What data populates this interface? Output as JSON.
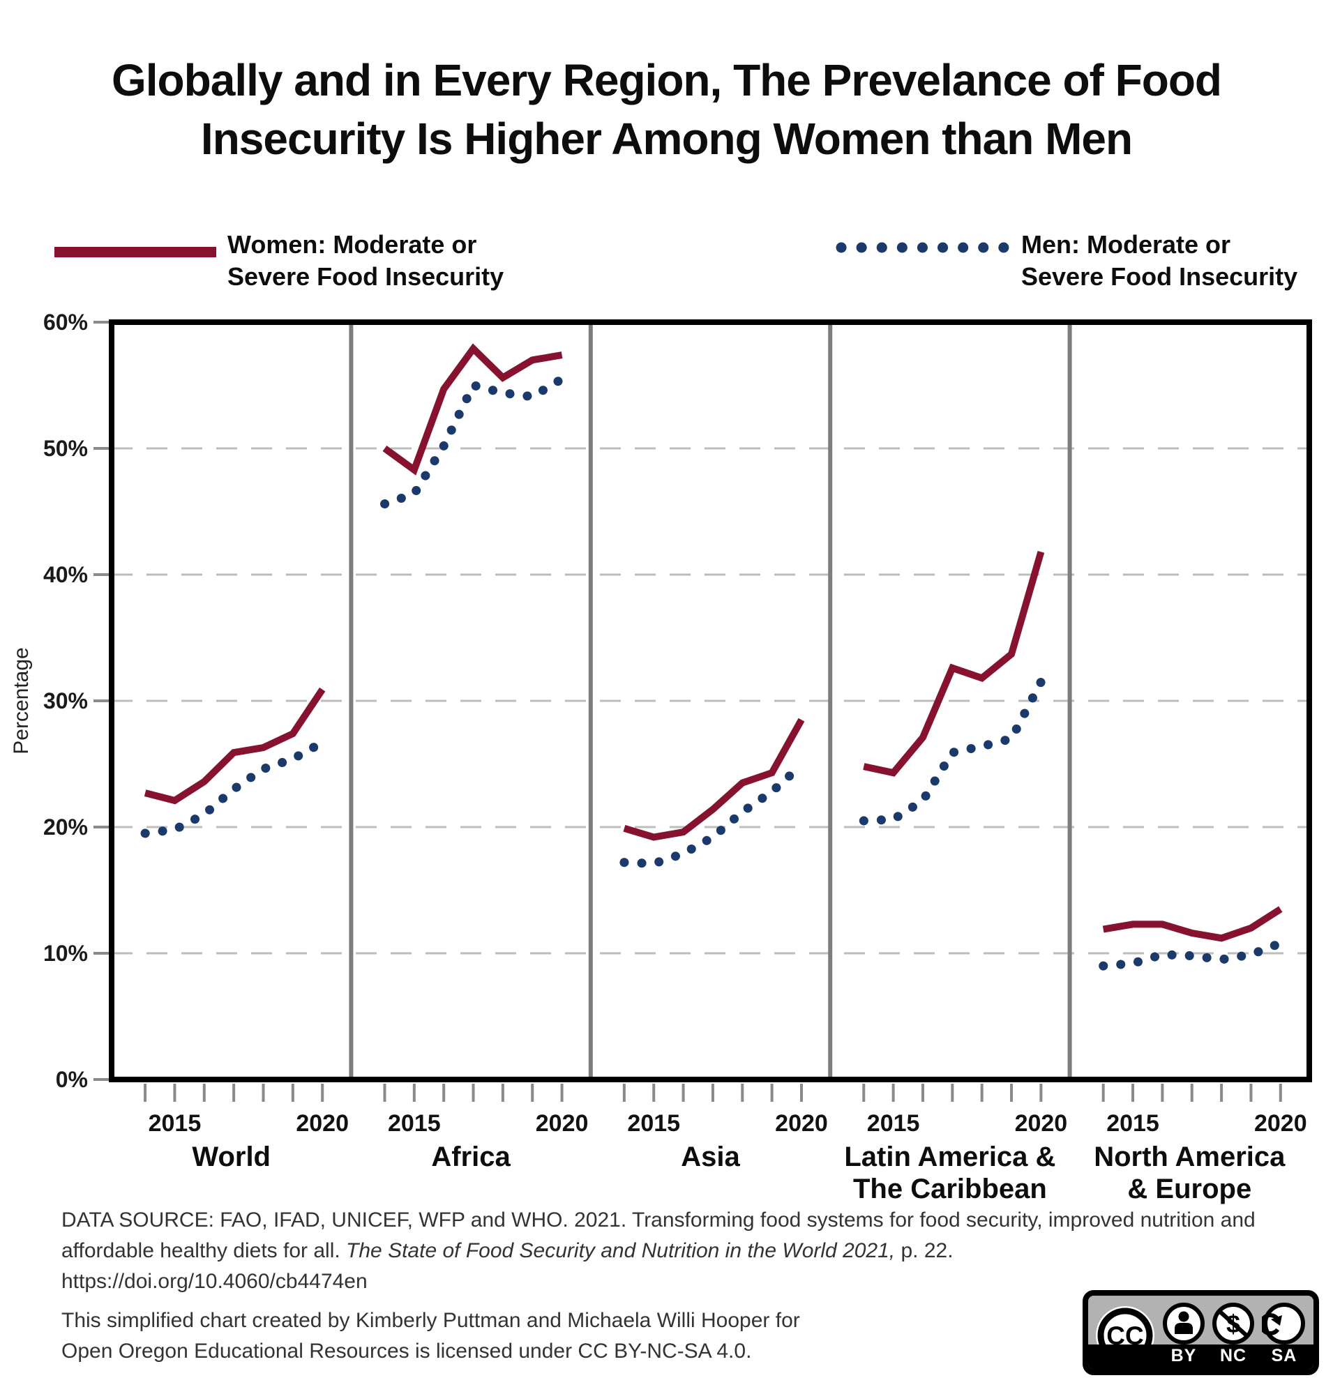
{
  "title": {
    "line1": "Globally and in Every Region, The Prevelance of Food",
    "line2": "Insecurity Is Higher Among Women than Men"
  },
  "legend": {
    "women": {
      "label_line1": "Women: Moderate or",
      "label_line2": "Severe Food Insecurity",
      "color": "#87122f",
      "style": "solid"
    },
    "men": {
      "label_line1": "Men: Moderate or",
      "label_line2": "Severe Food Insecurity",
      "color": "#1b3a6b",
      "style": "dotted"
    }
  },
  "chart_data": {
    "type": "line",
    "title": "",
    "ylabel": "Percentage",
    "ylim": [
      0,
      60
    ],
    "y_tick_labels": [
      "60%",
      "50%",
      "40%",
      "30%",
      "20%",
      "10%",
      "0%"
    ],
    "grid": "horizontal dashed gridlines every 10%",
    "legend_position": "top",
    "years": [
      2014,
      2015,
      2016,
      2017,
      2018,
      2019,
      2020
    ],
    "x_tick_labels_shown": [
      "2015",
      "2020"
    ],
    "series_names": [
      "Women: Moderate or Severe Food Insecurity",
      "Men: Moderate or Severe Food Insecurity"
    ],
    "panels": [
      {
        "region": "World",
        "region_lines": [
          "World"
        ],
        "women": [
          22.7,
          22.1,
          23.6,
          25.9,
          26.3,
          27.4,
          30.9
        ],
        "men": [
          19.5,
          19.8,
          21.0,
          23.0,
          24.6,
          25.4,
          26.7
        ]
      },
      {
        "region": "Africa",
        "region_lines": [
          "Africa"
        ],
        "women": [
          50.0,
          48.3,
          54.7,
          57.9,
          55.6,
          57.0,
          57.4
        ],
        "men": [
          45.6,
          46.4,
          50.2,
          55.0,
          54.4,
          54.1,
          55.5
        ]
      },
      {
        "region": "Asia",
        "region_lines": [
          "Asia"
        ],
        "women": [
          19.9,
          19.2,
          19.6,
          21.4,
          23.5,
          24.3,
          28.5
        ],
        "men": [
          17.2,
          17.1,
          17.9,
          19.2,
          21.2,
          22.8,
          24.9
        ]
      },
      {
        "region": "Latin America & The Caribbean",
        "region_lines": [
          "Latin America &",
          "The Caribbean"
        ],
        "women": [
          24.8,
          24.3,
          27.1,
          32.6,
          31.8,
          33.7,
          41.8
        ],
        "men": [
          20.5,
          20.6,
          22.1,
          25.9,
          26.4,
          27.0,
          31.5
        ]
      },
      {
        "region": "North America & Europe",
        "region_lines": [
          "North America",
          "& Europe"
        ],
        "women": [
          11.9,
          12.3,
          12.3,
          11.6,
          11.2,
          12.0,
          13.5
        ],
        "men": [
          9.0,
          9.2,
          9.9,
          9.8,
          9.5,
          9.9,
          10.8
        ]
      }
    ]
  },
  "source": {
    "line1": "DATA SOURCE: FAO, IFAD, UNICEF, WFP and WHO. 2021. Transforming food systems for food security, improved",
    "line2_regular": "nutrition and affordable healthy diets for all. ",
    "line2_italic": "The State of Food Security and Nutrition in the World 2021,",
    "line2_after": " p. 22.",
    "url": "https://doi.org/10.4060/cb4474en"
  },
  "credit": {
    "line1": "This simplified chart created by Kimberly Puttman and Michaela Willi Hooper for",
    "line2": "Open Oregon Educational Resources is licensed under CC BY-NC-SA 4.0."
  },
  "cc_badge": {
    "cc_label": "CC",
    "nc_symbol": "$",
    "items": [
      "BY",
      "NC",
      "SA"
    ]
  }
}
